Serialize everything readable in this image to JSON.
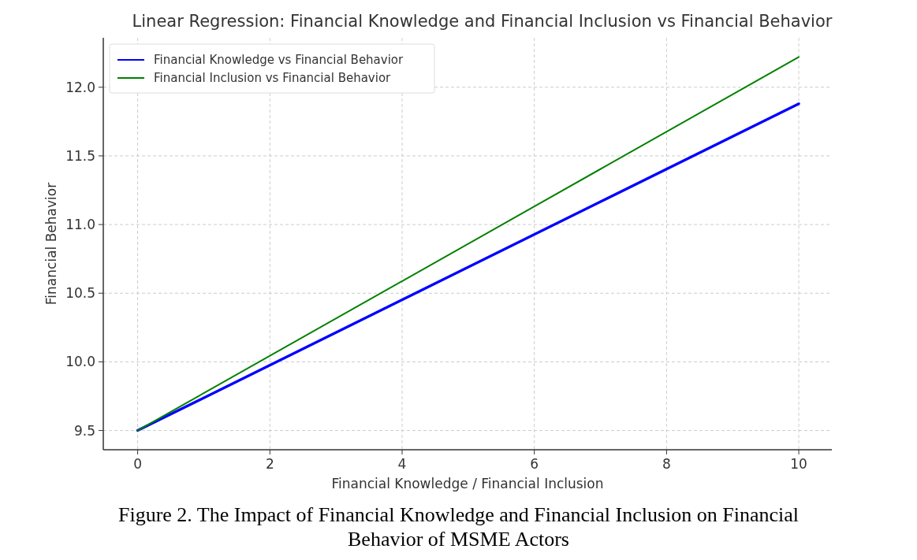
{
  "chart_data": {
    "type": "line",
    "title": "Linear Regression: Financial Knowledge and Financial Inclusion vs Financial Behavior",
    "xlabel": "Financial Knowledge / Financial Inclusion",
    "ylabel": "Financial Behavior",
    "x": [
      0,
      10
    ],
    "series": [
      {
        "name": "Financial Knowledge vs Financial Behavior",
        "color": "#0000ff",
        "values": [
          9.5,
          11.88
        ]
      },
      {
        "name": "Financial Inclusion vs Financial Behavior",
        "color": "#008000",
        "values": [
          9.5,
          12.22
        ]
      }
    ],
    "xlim": [
      -0.52,
      10.5
    ],
    "xticks": [
      0,
      2,
      4,
      6,
      8,
      10
    ],
    "ylim": [
      9.36,
      12.36
    ],
    "yticks": [
      {
        "value": 9.5,
        "label": "9.5"
      },
      {
        "value": 10,
        "label": "10.0"
      },
      {
        "value": 10.5,
        "label": "10.5"
      },
      {
        "value": 11,
        "label": "11.0"
      },
      {
        "value": 11.5,
        "label": "11.5"
      },
      {
        "value": 12,
        "label": "12.0"
      }
    ],
    "grid": true,
    "legend": "top left",
    "marker": "none",
    "line_style": "solid",
    "annotations": [
      "Figure 2. The Impact of Financial Knowledge and Financial Inclusion on Financial Behavior of MSME Actors"
    ]
  }
}
